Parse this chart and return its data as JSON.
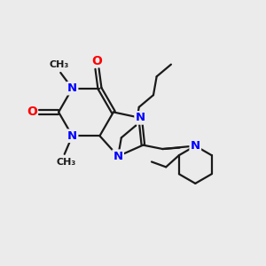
{
  "bg_color": "#ebebeb",
  "bond_color": "#1a1a1a",
  "N_color": "#0000ff",
  "O_color": "#ff0000",
  "lw": 1.6,
  "figsize": [
    3.0,
    3.0
  ],
  "dpi": 100,
  "xlim": [
    0,
    10
  ],
  "ylim": [
    0,
    10
  ]
}
